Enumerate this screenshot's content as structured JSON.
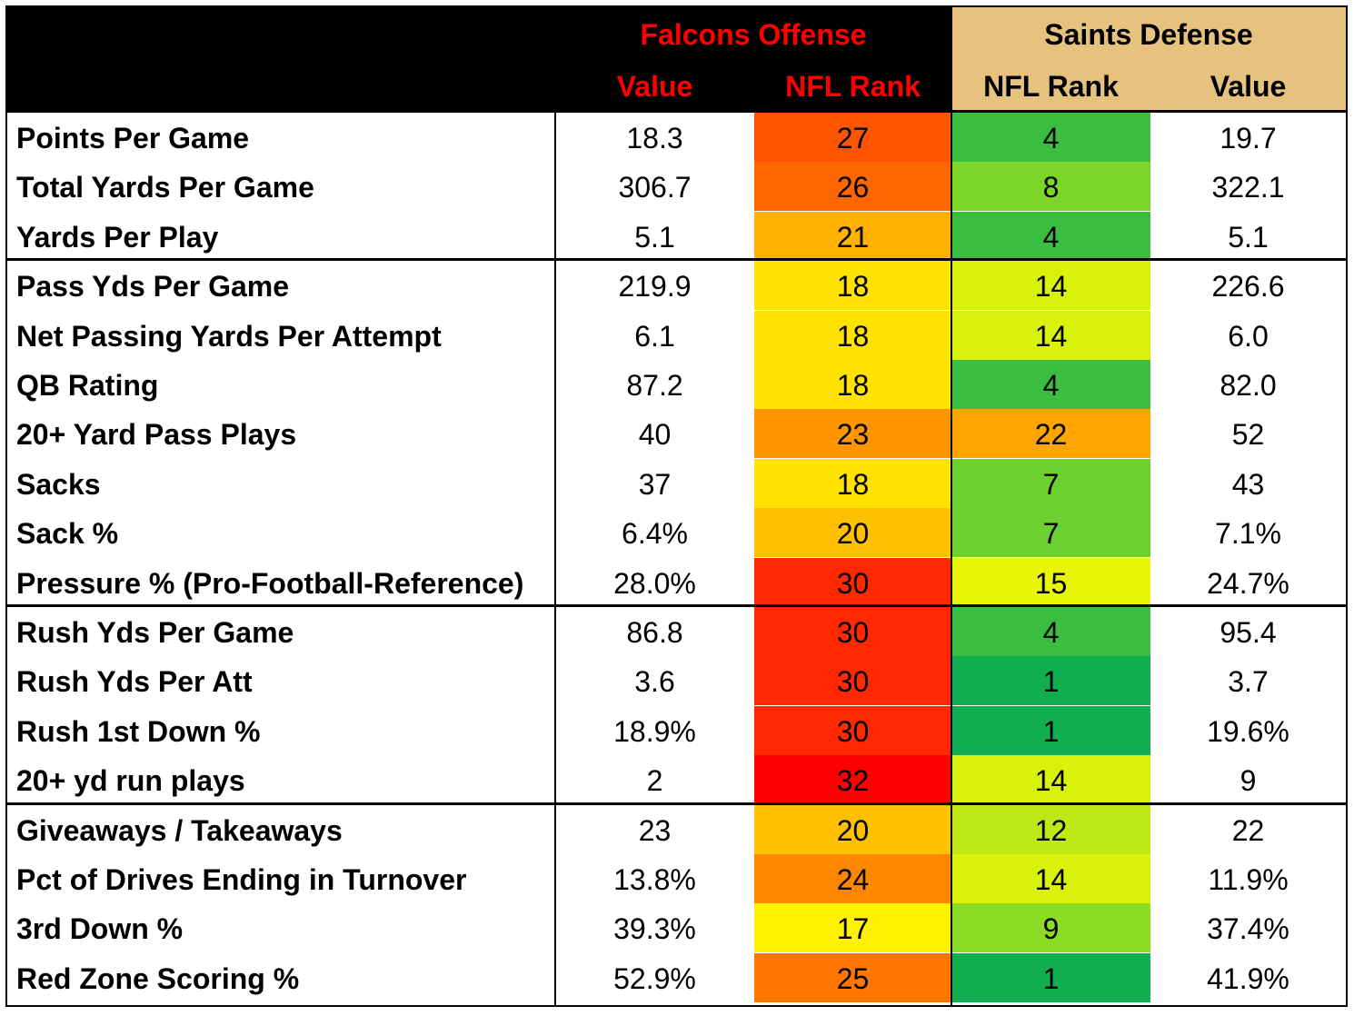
{
  "header": {
    "falcons_title": "Falcons Offense",
    "saints_title": "Saints Defense",
    "falcons_value": "Value",
    "falcons_rank": "NFL Rank",
    "saints_rank": "NFL Rank",
    "saints_value": "Value"
  },
  "colors": {
    "header_bg": "#000000",
    "saints_header_bg": "#E6C27E",
    "falcons_header_text": "#FF0000"
  },
  "chart_data": {
    "type": "table",
    "columns": [
      "",
      "Value",
      "NFL Rank",
      "NFL Rank",
      "Value"
    ],
    "groups": [
      [
        {
          "label": "Points Per Game",
          "f_value": "18.3",
          "f_rank": 27,
          "s_rank": 4,
          "s_value": "19.7"
        },
        {
          "label": "Total Yards Per Game",
          "f_value": "306.7",
          "f_rank": 26,
          "s_rank": 8,
          "s_value": "322.1"
        },
        {
          "label": "Yards Per Play",
          "f_value": "5.1",
          "f_rank": 21,
          "s_rank": 4,
          "s_value": "5.1"
        }
      ],
      [
        {
          "label": "Pass Yds Per Game",
          "f_value": "219.9",
          "f_rank": 18,
          "s_rank": 14,
          "s_value": "226.6"
        },
        {
          "label": "Net Passing Yards Per Attempt",
          "f_value": "6.1",
          "f_rank": 18,
          "s_rank": 14,
          "s_value": "6.0"
        },
        {
          "label": "QB Rating",
          "f_value": "87.2",
          "f_rank": 18,
          "s_rank": 4,
          "s_value": "82.0"
        },
        {
          "label": "20+ Yard Pass Plays",
          "f_value": "40",
          "f_rank": 23,
          "s_rank": 22,
          "s_value": "52"
        },
        {
          "label": "Sacks",
          "f_value": "37",
          "f_rank": 18,
          "s_rank": 7,
          "s_value": "43"
        },
        {
          "label": "Sack %",
          "f_value": "6.4%",
          "f_rank": 20,
          "s_rank": 7,
          "s_value": "7.1%"
        },
        {
          "label": "Pressure % (Pro-Football-Reference)",
          "f_value": "28.0%",
          "f_rank": 30,
          "s_rank": 15,
          "s_value": "24.7%"
        }
      ],
      [
        {
          "label": "Rush Yds Per Game",
          "f_value": "86.8",
          "f_rank": 30,
          "s_rank": 4,
          "s_value": "95.4"
        },
        {
          "label": "Rush Yds Per Att",
          "f_value": "3.6",
          "f_rank": 30,
          "s_rank": 1,
          "s_value": "3.7"
        },
        {
          "label": "Rush 1st Down %",
          "f_value": "18.9%",
          "f_rank": 30,
          "s_rank": 1,
          "s_value": "19.6%"
        },
        {
          "label": "20+ yd run plays",
          "f_value": "2",
          "f_rank": 32,
          "s_rank": 14,
          "s_value": "9"
        }
      ],
      [
        {
          "label": "Giveaways / Takeaways",
          "f_value": "23",
          "f_rank": 20,
          "s_rank": 12,
          "s_value": "22"
        },
        {
          "label": "Pct of Drives Ending in Turnover",
          "f_value": "13.8%",
          "f_rank": 24,
          "s_rank": 14,
          "s_value": "11.9%"
        },
        {
          "label": "3rd Down %",
          "f_value": "39.3%",
          "f_rank": 17,
          "s_rank": 9,
          "s_value": "37.4%"
        },
        {
          "label": "Red Zone Scoring %",
          "f_value": "52.9%",
          "f_rank": 25,
          "s_rank": 1,
          "s_value": "41.9%"
        }
      ]
    ]
  }
}
